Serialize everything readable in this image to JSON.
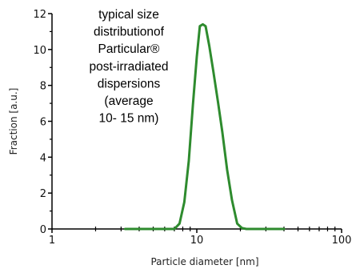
{
  "chart_data": {
    "type": "line",
    "xscale": "log",
    "xlim": [
      1,
      100
    ],
    "ylim": [
      0,
      12
    ],
    "xlabel": "Particle diameter [nm]",
    "ylabel": "Fraction [a.u.]",
    "x_ticks": [
      1,
      10,
      100
    ],
    "x_tick_labels": [
      "1",
      "10",
      "100"
    ],
    "y_ticks": [
      0,
      2,
      4,
      6,
      8,
      10,
      12
    ],
    "y_tick_labels": [
      "0",
      "2",
      "4",
      "6",
      "8",
      "10",
      "12"
    ],
    "grid": false,
    "line_color": "#2e8b2e",
    "annotation_lines": [
      "typical size",
      "distributionof",
      "Particular®",
      "post-irradiated",
      "dispersions",
      "(average",
      "10- 15 nm)"
    ],
    "series": [
      {
        "x": [
          3.2,
          7.0,
          7.6,
          8.2,
          8.8,
          9.4,
          10.0,
          10.5,
          11.0,
          11.5,
          12.2,
          13.0,
          14.0,
          15.0,
          16.2,
          17.5,
          19.0,
          20.5,
          22.0,
          28.0,
          40.0
        ],
        "y": [
          0.0,
          0.0,
          0.3,
          1.5,
          3.8,
          6.9,
          9.6,
          11.3,
          11.4,
          11.3,
          10.2,
          8.8,
          7.1,
          5.4,
          3.3,
          1.6,
          0.3,
          0.05,
          0.0,
          0.0,
          0.0
        ]
      }
    ]
  }
}
